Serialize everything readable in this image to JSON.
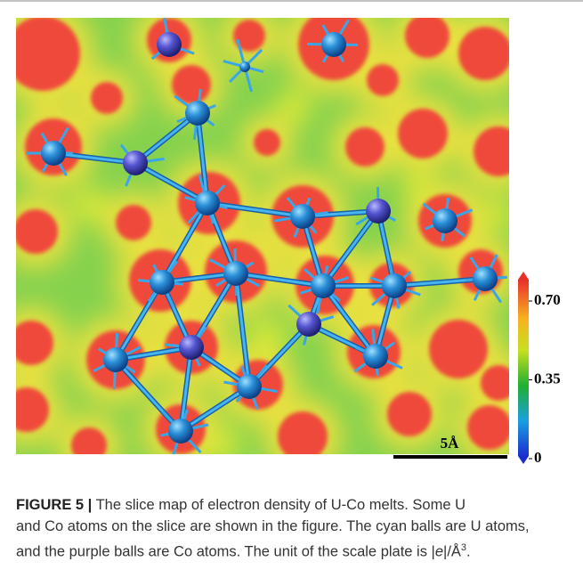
{
  "figure": {
    "colorbar": {
      "ticks": [
        {
          "value": 0.7,
          "label": "0.70"
        },
        0.35,
        0
      ],
      "lim": [
        0,
        0.7
      ]
    },
    "scale_bar": "5Å",
    "caption": {
      "label": "FIGURE 5 |",
      "line1": "The slice map of electron density of U-Co melts. Some U",
      "line2": "and Co atoms on the slice are shown in the figure. The cyan balls are U atoms,",
      "line3": "and the purple balls are Co atoms. The unit of the scale plate is |",
      "unit_symbol": "e",
      "unit_rest": "|/Å",
      "unit_power": "3",
      "end": "."
    }
  }
}
